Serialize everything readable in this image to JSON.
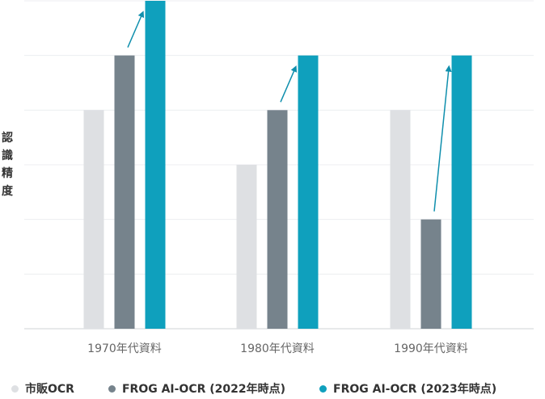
{
  "chart_data": {
    "type": "bar",
    "ylabel": "認識精度",
    "categories": [
      "1970年代資料",
      "1980年代資料",
      "1990年代資料"
    ],
    "series": [
      {
        "name": "市販OCR",
        "color": "#dee0e3",
        "values": [
          4,
          3,
          4
        ]
      },
      {
        "name": "FROG AI-OCR (2022年時点)",
        "color": "#76838c",
        "values": [
          5,
          4,
          2
        ]
      },
      {
        "name": "FROG AI-OCR (2023年時点)",
        "color": "#0fa0bd",
        "values": [
          6,
          5,
          5
        ]
      }
    ],
    "ylim": [
      0,
      6
    ],
    "grid": true,
    "legend_position": "bottom",
    "arrows": "from FROG AI-OCR (2022年時点) bar to FROG AI-OCR (2023年時点) bar in each category",
    "arrow_color": "#0f8fad"
  }
}
